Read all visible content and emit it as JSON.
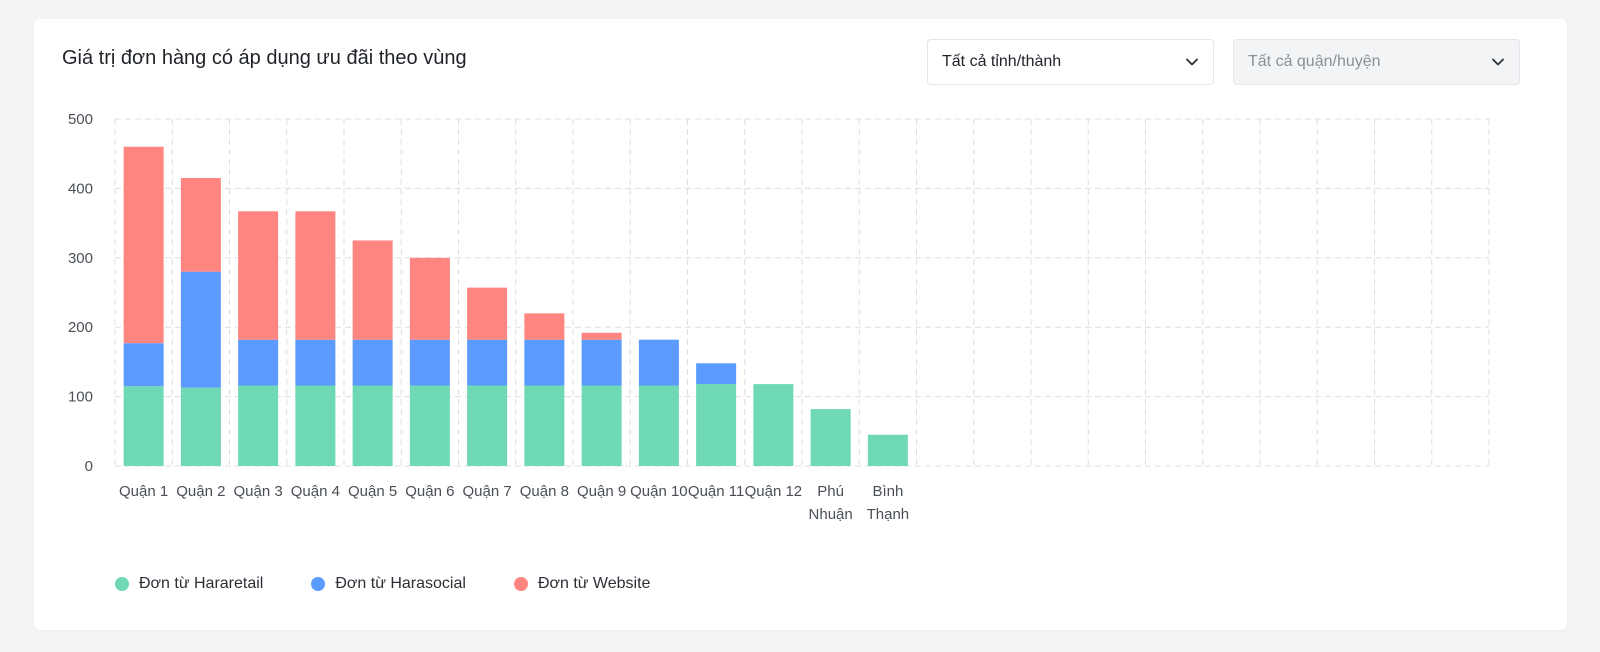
{
  "filters": {
    "province": "Tất cả tỉnh/thành",
    "district": "Tất cả quận/huyện"
  },
  "colors": {
    "hararetail": "#6fd9b5",
    "harasocial": "#5b9bff",
    "website": "#ff8580"
  },
  "chart_data": {
    "type": "bar",
    "stacked": true,
    "title": "Giá trị đơn hàng có áp dụng ưu đãi theo vùng",
    "xlabel": "",
    "ylabel": "",
    "ylim": [
      0,
      500
    ],
    "yticks": [
      0,
      100,
      200,
      300,
      400,
      500
    ],
    "grid": true,
    "legend_position": "bottom-left",
    "categories": [
      [
        "Quận 1"
      ],
      [
        "Quận 2"
      ],
      [
        "Quận 3"
      ],
      [
        "Quận 4"
      ],
      [
        "Quận 5"
      ],
      [
        "Quận 6"
      ],
      [
        "Quận 7"
      ],
      [
        "Quận 8"
      ],
      [
        "Quận 9"
      ],
      [
        "Quận 10"
      ],
      [
        "Quận 11"
      ],
      [
        "Quận 12"
      ],
      [
        "Phú",
        "Nhuận"
      ],
      [
        "Bình",
        "Thạnh"
      ],
      [
        ""
      ],
      [
        ""
      ],
      [
        ""
      ],
      [
        ""
      ],
      [
        ""
      ],
      [
        ""
      ],
      [
        ""
      ],
      [
        ""
      ],
      [
        ""
      ],
      [
        ""
      ]
    ],
    "series": [
      {
        "name": "Đơn từ Hararetail",
        "color": "#6fd9b5",
        "values": [
          115,
          113,
          116,
          116,
          116,
          116,
          116,
          116,
          116,
          116,
          118,
          118,
          82,
          45,
          null,
          null,
          null,
          null,
          null,
          null,
          null,
          null,
          null,
          null
        ]
      },
      {
        "name": "Đơn từ Harasocial",
        "color": "#5b9bff",
        "values": [
          62,
          167,
          66,
          66,
          66,
          66,
          66,
          66,
          66,
          66,
          30,
          0,
          0,
          0,
          null,
          null,
          null,
          null,
          null,
          null,
          null,
          null,
          null,
          null
        ]
      },
      {
        "name": "Đơn từ Website",
        "color": "#ff8580",
        "values": [
          283,
          135,
          185,
          185,
          143,
          118,
          75,
          38,
          10,
          0,
          0,
          0,
          0,
          0,
          null,
          null,
          null,
          null,
          null,
          null,
          null,
          null,
          null,
          null
        ]
      }
    ]
  }
}
